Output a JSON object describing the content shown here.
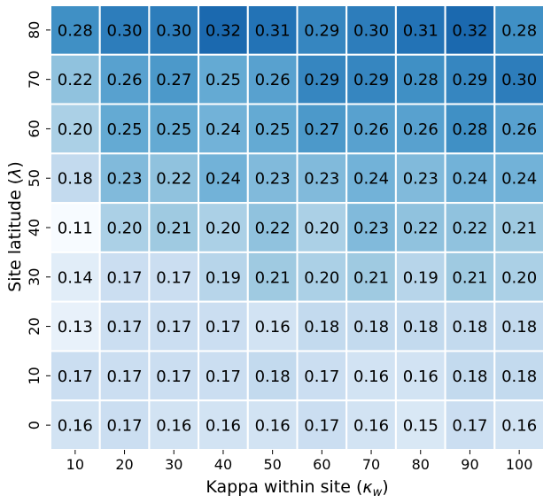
{
  "chart_data": {
    "type": "heatmap",
    "title": "",
    "xlabel": "Kappa within site (",
    "xlabel_symbol": "κ",
    "xlabel_subscript": "w",
    "xlabel_suffix": ")",
    "ylabel": "Site latitude (",
    "ylabel_symbol": "λ",
    "ylabel_suffix": ")",
    "x_categories": [
      "10",
      "20",
      "30",
      "40",
      "50",
      "60",
      "70",
      "80",
      "90",
      "100"
    ],
    "y_categories": [
      "80",
      "70",
      "60",
      "50",
      "40",
      "30",
      "20",
      "10",
      "0"
    ],
    "values": [
      [
        0.28,
        0.3,
        0.3,
        0.32,
        0.31,
        0.29,
        0.3,
        0.31,
        0.32,
        0.28
      ],
      [
        0.22,
        0.26,
        0.27,
        0.25,
        0.26,
        0.29,
        0.29,
        0.28,
        0.29,
        0.3
      ],
      [
        0.2,
        0.25,
        0.25,
        0.24,
        0.25,
        0.27,
        0.26,
        0.26,
        0.28,
        0.26
      ],
      [
        0.18,
        0.23,
        0.22,
        0.24,
        0.23,
        0.23,
        0.24,
        0.23,
        0.24,
        0.24
      ],
      [
        0.11,
        0.2,
        0.21,
        0.2,
        0.22,
        0.2,
        0.23,
        0.22,
        0.22,
        0.21
      ],
      [
        0.14,
        0.17,
        0.17,
        0.19,
        0.21,
        0.2,
        0.21,
        0.19,
        0.21,
        0.2
      ],
      [
        0.13,
        0.17,
        0.17,
        0.17,
        0.16,
        0.18,
        0.18,
        0.18,
        0.18,
        0.18
      ],
      [
        0.17,
        0.17,
        0.17,
        0.17,
        0.18,
        0.17,
        0.16,
        0.16,
        0.18,
        0.18
      ],
      [
        0.16,
        0.17,
        0.16,
        0.16,
        0.16,
        0.17,
        0.16,
        0.15,
        0.17,
        0.16
      ]
    ],
    "value_format": "2-decimals",
    "colormap": "Blues",
    "color_low": "#f7fbff",
    "color_high": "#08306b",
    "grid_line_color": "#ffffff",
    "colorbar": false,
    "legend": "none"
  }
}
